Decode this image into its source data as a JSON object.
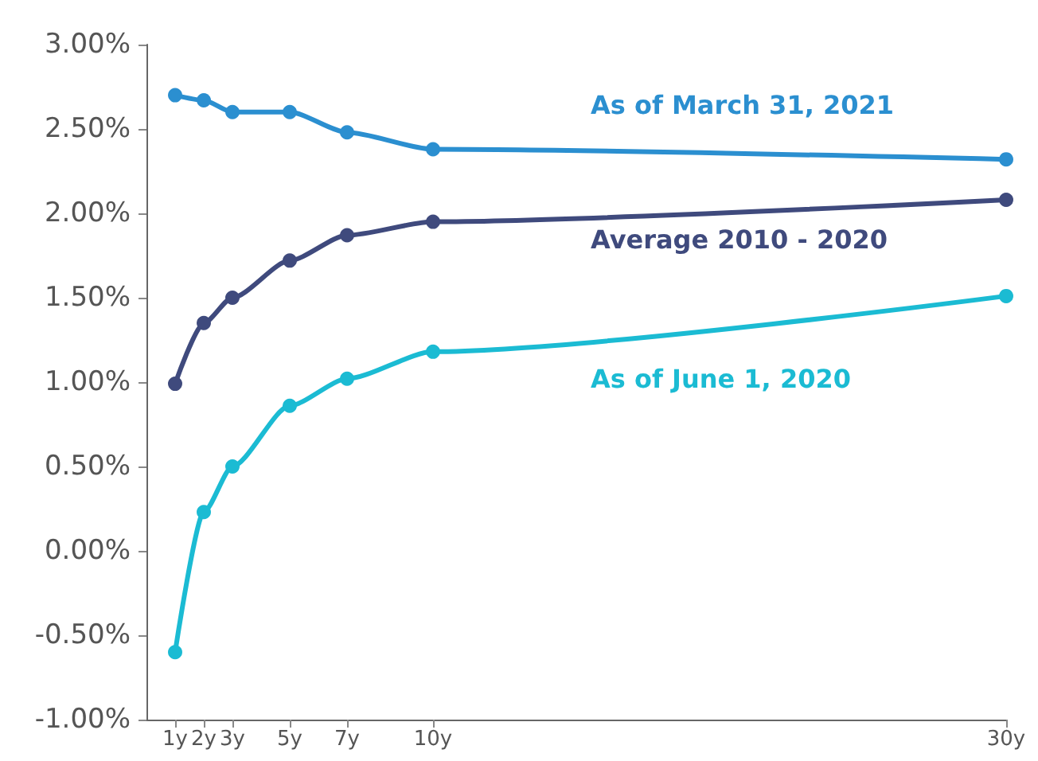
{
  "chart_data": {
    "type": "line",
    "x": [
      1,
      2,
      3,
      5,
      7,
      10,
      30
    ],
    "xlim": [
      0,
      30
    ],
    "xticks": [
      {
        "value": 1,
        "label": "1y"
      },
      {
        "value": 2,
        "label": "2y"
      },
      {
        "value": 3,
        "label": "3y"
      },
      {
        "value": 5,
        "label": "5y"
      },
      {
        "value": 7,
        "label": "7y"
      },
      {
        "value": 10,
        "label": "10y"
      },
      {
        "value": 30,
        "label": "30y"
      }
    ],
    "ylim": [
      -1,
      3
    ],
    "yticks": [
      {
        "value": -1,
        "label": "-1.00%"
      },
      {
        "value": -0.5,
        "label": "-0.50%"
      },
      {
        "value": 0,
        "label": "0.00%"
      },
      {
        "value": 0.5,
        "label": "0.50%"
      },
      {
        "value": 1,
        "label": "1.00%"
      },
      {
        "value": 1.5,
        "label": "1.50%"
      },
      {
        "value": 2,
        "label": "2.00%"
      },
      {
        "value": 2.5,
        "label": "2.50%"
      },
      {
        "value": 3,
        "label": "3.00%"
      }
    ],
    "series": [
      {
        "name": "As of March 31, 2021",
        "color": "#2b8fd0",
        "values": [
          2.7,
          2.67,
          2.6,
          2.6,
          2.48,
          2.38,
          2.32
        ]
      },
      {
        "name": "Average 2010 - 2020",
        "color": "#3f4a7d",
        "values": [
          0.99,
          1.35,
          1.5,
          1.72,
          1.87,
          1.95,
          2.08
        ]
      },
      {
        "name": "As of June 1, 2020",
        "color": "#1bbbd3",
        "values": [
          -0.6,
          0.23,
          0.5,
          0.86,
          1.02,
          1.18,
          1.51
        ]
      }
    ],
    "grid": false,
    "legend": false,
    "marker": "circle",
    "line_style": "solid"
  }
}
